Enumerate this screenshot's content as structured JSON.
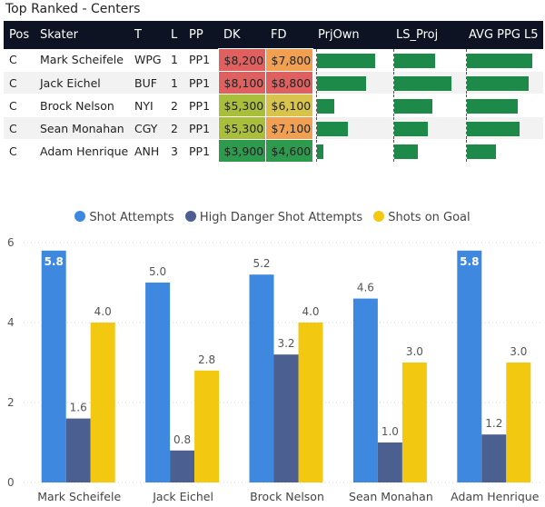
{
  "page_title": "Top Ranked - Centers",
  "table": {
    "columns": [
      "Pos",
      "Skater",
      "T",
      "L",
      "PP",
      "DK",
      "FD",
      "PrjOwn",
      "LS_Proj",
      "AVG PPG L5"
    ],
    "rows": [
      {
        "pos": "C",
        "skater": "Mark Scheifele",
        "team": "WPG",
        "line": "1",
        "pp": "PP1",
        "dk": "$8,200",
        "fd": "$7,800",
        "dk_color": "#e06060",
        "fd_color": "#f0a050",
        "prjown": 0.85,
        "ls_proj": 0.62,
        "avg_ppg": 0.9
      },
      {
        "pos": "C",
        "skater": "Jack Eichel",
        "team": "BUF",
        "line": "1",
        "pp": "PP1",
        "dk": "$8,100",
        "fd": "$8,800",
        "dk_color": "#e06060",
        "fd_color": "#e06060",
        "prjown": 0.72,
        "ls_proj": 0.88,
        "avg_ppg": 0.85
      },
      {
        "pos": "C",
        "skater": "Brock Nelson",
        "team": "NYI",
        "line": "2",
        "pp": "PP1",
        "dk": "$5,300",
        "fd": "$6,100",
        "dk_color": "#a9bf3c",
        "fd_color": "#d8c44a",
        "prjown": 0.26,
        "ls_proj": 0.58,
        "avg_ppg": 0.7
      },
      {
        "pos": "C",
        "skater": "Sean Monahan",
        "team": "CGY",
        "line": "2",
        "pp": "PP1",
        "dk": "$5,300",
        "fd": "$7,100",
        "dk_color": "#a9bf3c",
        "fd_color": "#f0a050",
        "prjown": 0.46,
        "ls_proj": 0.52,
        "avg_ppg": 0.72
      },
      {
        "pos": "C",
        "skater": "Adam Henrique",
        "team": "ANH",
        "line": "3",
        "pp": "PP1",
        "dk": "$3,900",
        "fd": "$4,600",
        "dk_color": "#2e9a4e",
        "fd_color": "#2e9a4e",
        "prjown": 0.1,
        "ls_proj": 0.36,
        "avg_ppg": 0.4
      }
    ]
  },
  "chart_data": {
    "type": "bar",
    "categories": [
      "Mark Scheifele",
      "Jack Eichel",
      "Brock Nelson",
      "Sean Monahan",
      "Adam Henrique"
    ],
    "series": [
      {
        "name": "Shot Attempts",
        "values": [
          5.8,
          5.0,
          5.2,
          4.6,
          5.8
        ],
        "labels": [
          "5.8",
          "5.0",
          "5.2",
          "4.6",
          "5.8"
        ],
        "color": "#3f88e0"
      },
      {
        "name": "High Danger Shot Attempts",
        "values": [
          1.6,
          0.8,
          3.2,
          1.0,
          1.2
        ],
        "labels": [
          "1.6",
          "0.8",
          "3.2",
          "1.0",
          "1.2"
        ],
        "color": "#4c5f91"
      },
      {
        "name": "Shots on Goal",
        "values": [
          4.0,
          2.8,
          4.0,
          3.0,
          3.0
        ],
        "labels": [
          "4.0",
          "2.8",
          "4.0",
          "3.0",
          "3.0"
        ],
        "color": "#f2c811"
      }
    ],
    "ylim": [
      0,
      6
    ],
    "yticks": [
      "0",
      "2",
      "4",
      "6"
    ],
    "legend_position": "top-center"
  }
}
